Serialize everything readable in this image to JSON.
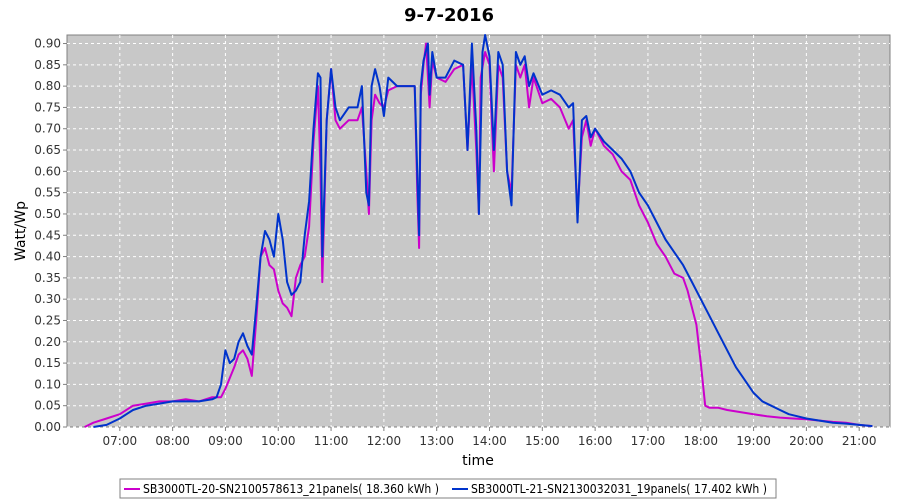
{
  "chart_data": {
    "type": "line",
    "title": "9-7-2016",
    "xlabel": "time",
    "ylabel": "Watt/Wp",
    "ylim": [
      0.0,
      0.92
    ],
    "xlim": [
      "06:00",
      "21:35"
    ],
    "y_ticks": [
      "0.00",
      "0.05",
      "0.10",
      "0.15",
      "0.20",
      "0.25",
      "0.30",
      "0.35",
      "0.40",
      "0.45",
      "0.50",
      "0.55",
      "0.60",
      "0.65",
      "0.70",
      "0.75",
      "0.80",
      "0.85",
      "0.90"
    ],
    "x_ticks": [
      "07:00",
      "08:00",
      "09:00",
      "10:00",
      "11:00",
      "12:00",
      "13:00",
      "14:00",
      "15:00",
      "16:00",
      "17:00",
      "18:00",
      "19:00",
      "20:00",
      "21:00"
    ],
    "grid": true,
    "legend_position": "bottom",
    "plot_background": "#c8c8c8",
    "series": [
      {
        "name": "SB3000TL-20-SN2100578613_21panels( 18.360 kWh )",
        "color": "#cc00cc",
        "points": [
          [
            "06:20",
            0.0
          ],
          [
            "06:30",
            0.01
          ],
          [
            "06:45",
            0.02
          ],
          [
            "07:00",
            0.03
          ],
          [
            "07:15",
            0.05
          ],
          [
            "07:30",
            0.055
          ],
          [
            "07:45",
            0.06
          ],
          [
            "08:00",
            0.06
          ],
          [
            "08:15",
            0.065
          ],
          [
            "08:30",
            0.06
          ],
          [
            "08:45",
            0.07
          ],
          [
            "08:55",
            0.07
          ],
          [
            "09:00",
            0.09
          ],
          [
            "09:10",
            0.14
          ],
          [
            "09:15",
            0.17
          ],
          [
            "09:20",
            0.18
          ],
          [
            "09:25",
            0.16
          ],
          [
            "09:30",
            0.12
          ],
          [
            "09:35",
            0.25
          ],
          [
            "09:40",
            0.4
          ],
          [
            "09:45",
            0.42
          ],
          [
            "09:50",
            0.38
          ],
          [
            "09:55",
            0.37
          ],
          [
            "10:00",
            0.32
          ],
          [
            "10:05",
            0.29
          ],
          [
            "10:10",
            0.28
          ],
          [
            "10:15",
            0.26
          ],
          [
            "10:20",
            0.35
          ],
          [
            "10:25",
            0.38
          ],
          [
            "10:30",
            0.4
          ],
          [
            "10:35",
            0.47
          ],
          [
            "10:40",
            0.67
          ],
          [
            "10:45",
            0.8
          ],
          [
            "10:48",
            0.6
          ],
          [
            "10:50",
            0.34
          ],
          [
            "10:55",
            0.72
          ],
          [
            "11:00",
            0.84
          ],
          [
            "11:05",
            0.72
          ],
          [
            "11:10",
            0.7
          ],
          [
            "11:20",
            0.72
          ],
          [
            "11:30",
            0.72
          ],
          [
            "11:35",
            0.75
          ],
          [
            "11:40",
            0.6
          ],
          [
            "11:43",
            0.5
          ],
          [
            "11:46",
            0.72
          ],
          [
            "11:50",
            0.78
          ],
          [
            "11:55",
            0.76
          ],
          [
            "12:00",
            0.75
          ],
          [
            "12:05",
            0.79
          ],
          [
            "12:15",
            0.8
          ],
          [
            "12:25",
            0.8
          ],
          [
            "12:35",
            0.8
          ],
          [
            "12:38",
            0.55
          ],
          [
            "12:40",
            0.42
          ],
          [
            "12:42",
            0.78
          ],
          [
            "12:45",
            0.85
          ],
          [
            "12:48",
            0.9
          ],
          [
            "12:52",
            0.75
          ],
          [
            "12:55",
            0.86
          ],
          [
            "13:00",
            0.82
          ],
          [
            "13:10",
            0.81
          ],
          [
            "13:20",
            0.84
          ],
          [
            "13:30",
            0.85
          ],
          [
            "13:35",
            0.65
          ],
          [
            "13:40",
            0.85
          ],
          [
            "13:45",
            0.65
          ],
          [
            "13:48",
            0.5
          ],
          [
            "13:50",
            0.82
          ],
          [
            "13:55",
            0.88
          ],
          [
            "14:00",
            0.85
          ],
          [
            "14:05",
            0.6
          ],
          [
            "14:10",
            0.85
          ],
          [
            "14:15",
            0.82
          ],
          [
            "14:20",
            0.6
          ],
          [
            "14:25",
            0.55
          ],
          [
            "14:30",
            0.85
          ],
          [
            "14:35",
            0.82
          ],
          [
            "14:40",
            0.85
          ],
          [
            "14:45",
            0.75
          ],
          [
            "14:50",
            0.82
          ],
          [
            "15:00",
            0.76
          ],
          [
            "15:10",
            0.77
          ],
          [
            "15:20",
            0.75
          ],
          [
            "15:30",
            0.7
          ],
          [
            "15:35",
            0.72
          ],
          [
            "15:40",
            0.5
          ],
          [
            "15:45",
            0.68
          ],
          [
            "15:50",
            0.72
          ],
          [
            "15:55",
            0.66
          ],
          [
            "16:00",
            0.7
          ],
          [
            "16:10",
            0.66
          ],
          [
            "16:20",
            0.64
          ],
          [
            "16:30",
            0.6
          ],
          [
            "16:40",
            0.58
          ],
          [
            "16:50",
            0.52
          ],
          [
            "17:00",
            0.48
          ],
          [
            "17:10",
            0.43
          ],
          [
            "17:20",
            0.4
          ],
          [
            "17:30",
            0.36
          ],
          [
            "17:40",
            0.35
          ],
          [
            "17:45",
            0.32
          ],
          [
            "17:50",
            0.28
          ],
          [
            "17:55",
            0.24
          ],
          [
            "18:00",
            0.15
          ],
          [
            "18:05",
            0.05
          ],
          [
            "18:10",
            0.045
          ],
          [
            "18:20",
            0.045
          ],
          [
            "18:30",
            0.04
          ],
          [
            "18:45",
            0.035
          ],
          [
            "19:00",
            0.03
          ],
          [
            "19:15",
            0.025
          ],
          [
            "19:30",
            0.022
          ],
          [
            "19:45",
            0.02
          ],
          [
            "20:00",
            0.018
          ],
          [
            "20:15",
            0.015
          ],
          [
            "20:30",
            0.012
          ],
          [
            "20:45",
            0.01
          ],
          [
            "21:00",
            0.005
          ],
          [
            "21:15",
            0.002
          ]
        ]
      },
      {
        "name": "SB3000TL-21-SN2130032031_19panels( 17.402 kWh )",
        "color": "#0033cc",
        "points": [
          [
            "06:30",
            0.0
          ],
          [
            "06:45",
            0.005
          ],
          [
            "07:00",
            0.02
          ],
          [
            "07:15",
            0.04
          ],
          [
            "07:30",
            0.05
          ],
          [
            "07:45",
            0.055
          ],
          [
            "08:00",
            0.06
          ],
          [
            "08:15",
            0.06
          ],
          [
            "08:30",
            0.06
          ],
          [
            "08:45",
            0.065
          ],
          [
            "08:50",
            0.07
          ],
          [
            "08:55",
            0.1
          ],
          [
            "09:00",
            0.18
          ],
          [
            "09:05",
            0.15
          ],
          [
            "09:10",
            0.16
          ],
          [
            "09:15",
            0.2
          ],
          [
            "09:20",
            0.22
          ],
          [
            "09:25",
            0.19
          ],
          [
            "09:30",
            0.17
          ],
          [
            "09:35",
            0.28
          ],
          [
            "09:40",
            0.4
          ],
          [
            "09:45",
            0.46
          ],
          [
            "09:50",
            0.44
          ],
          [
            "09:55",
            0.4
          ],
          [
            "10:00",
            0.5
          ],
          [
            "10:05",
            0.44
          ],
          [
            "10:10",
            0.34
          ],
          [
            "10:15",
            0.31
          ],
          [
            "10:20",
            0.32
          ],
          [
            "10:25",
            0.34
          ],
          [
            "10:30",
            0.45
          ],
          [
            "10:35",
            0.53
          ],
          [
            "10:40",
            0.7
          ],
          [
            "10:45",
            0.83
          ],
          [
            "10:48",
            0.82
          ],
          [
            "10:50",
            0.4
          ],
          [
            "10:55",
            0.72
          ],
          [
            "11:00",
            0.84
          ],
          [
            "11:05",
            0.75
          ],
          [
            "11:10",
            0.72
          ],
          [
            "11:20",
            0.75
          ],
          [
            "11:30",
            0.75
          ],
          [
            "11:35",
            0.8
          ],
          [
            "11:40",
            0.55
          ],
          [
            "11:43",
            0.52
          ],
          [
            "11:46",
            0.8
          ],
          [
            "11:50",
            0.84
          ],
          [
            "11:55",
            0.8
          ],
          [
            "12:00",
            0.73
          ],
          [
            "12:05",
            0.82
          ],
          [
            "12:15",
            0.8
          ],
          [
            "12:25",
            0.8
          ],
          [
            "12:35",
            0.8
          ],
          [
            "12:40",
            0.45
          ],
          [
            "12:42",
            0.8
          ],
          [
            "12:45",
            0.86
          ],
          [
            "12:50",
            0.9
          ],
          [
            "12:52",
            0.78
          ],
          [
            "12:55",
            0.88
          ],
          [
            "13:00",
            0.82
          ],
          [
            "13:10",
            0.82
          ],
          [
            "13:20",
            0.86
          ],
          [
            "13:30",
            0.85
          ],
          [
            "13:35",
            0.65
          ],
          [
            "13:40",
            0.9
          ],
          [
            "13:45",
            0.7
          ],
          [
            "13:48",
            0.5
          ],
          [
            "13:52",
            0.88
          ],
          [
            "13:55",
            0.92
          ],
          [
            "14:00",
            0.87
          ],
          [
            "14:05",
            0.65
          ],
          [
            "14:10",
            0.88
          ],
          [
            "14:15",
            0.85
          ],
          [
            "14:20",
            0.6
          ],
          [
            "14:25",
            0.52
          ],
          [
            "14:30",
            0.88
          ],
          [
            "14:35",
            0.85
          ],
          [
            "14:40",
            0.87
          ],
          [
            "14:45",
            0.8
          ],
          [
            "14:50",
            0.83
          ],
          [
            "15:00",
            0.78
          ],
          [
            "15:10",
            0.79
          ],
          [
            "15:20",
            0.78
          ],
          [
            "15:30",
            0.75
          ],
          [
            "15:35",
            0.76
          ],
          [
            "15:40",
            0.48
          ],
          [
            "15:45",
            0.72
          ],
          [
            "15:50",
            0.73
          ],
          [
            "15:55",
            0.68
          ],
          [
            "16:00",
            0.7
          ],
          [
            "16:10",
            0.67
          ],
          [
            "16:20",
            0.65
          ],
          [
            "16:30",
            0.63
          ],
          [
            "16:40",
            0.6
          ],
          [
            "16:50",
            0.55
          ],
          [
            "17:00",
            0.52
          ],
          [
            "17:10",
            0.48
          ],
          [
            "17:20",
            0.44
          ],
          [
            "17:30",
            0.41
          ],
          [
            "17:40",
            0.38
          ],
          [
            "17:50",
            0.34
          ],
          [
            "18:00",
            0.3
          ],
          [
            "18:10",
            0.26
          ],
          [
            "18:20",
            0.22
          ],
          [
            "18:30",
            0.18
          ],
          [
            "18:40",
            0.14
          ],
          [
            "18:50",
            0.11
          ],
          [
            "19:00",
            0.08
          ],
          [
            "19:10",
            0.06
          ],
          [
            "19:20",
            0.05
          ],
          [
            "19:30",
            0.04
          ],
          [
            "19:40",
            0.03
          ],
          [
            "19:50",
            0.025
          ],
          [
            "20:00",
            0.02
          ],
          [
            "20:15",
            0.015
          ],
          [
            "20:30",
            0.01
          ],
          [
            "20:45",
            0.008
          ],
          [
            "21:00",
            0.005
          ],
          [
            "21:15",
            0.002
          ]
        ]
      }
    ]
  }
}
